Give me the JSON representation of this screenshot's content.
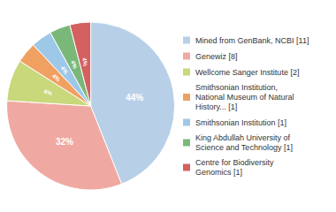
{
  "chart_data": {
    "type": "pie",
    "categories": [
      "Mined from GenBank, NCBI [11]",
      "Genewiz [8]",
      "Wellcome Sanger Institute [2]",
      "Smithsonian Institution,\nNational Museum of Natural\nHistory... [1]",
      "Smithsonian Institution [1]",
      "King Abdullah University of\nScience and Technology [1]",
      "Centre for Biodiversity\nGenomics [1]"
    ],
    "values": [
      44,
      32,
      8,
      4,
      4,
      4,
      4
    ],
    "value_labels": [
      "44%",
      "32%",
      "8%",
      "4%",
      "4%",
      "4%",
      "4%"
    ],
    "colors": [
      "#b8cfe8",
      "#f0a9a2",
      "#c8d87a",
      "#f0a060",
      "#9ec8e8",
      "#7ab87a",
      "#d46060"
    ],
    "data_labels": true,
    "legend": "right"
  }
}
